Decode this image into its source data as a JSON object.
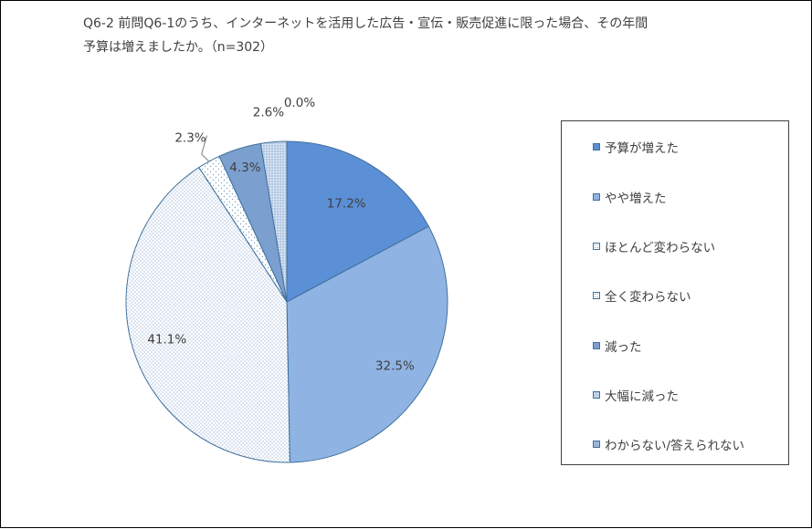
{
  "title_line1": "Q6-2 前問Q6-1のうち、インターネットを活用した広告・宣伝・販売促進に限った場合、その年間",
  "title_line2": "予算は増えましたか。（n=302）",
  "chart_data": {
    "type": "pie",
    "title": "Q6-2 前問Q6-1のうち、インターネットを活用した広告・宣伝・販売促進に限った場合、その年間予算は増えましたか。（n=302）",
    "categories": [
      "予算が増えた",
      "やや増えた",
      "ほとんど変わらない",
      "全く変わらない",
      "減った",
      "大幅に減った",
      "わからない/答えられない"
    ],
    "values": [
      17.2,
      32.5,
      41.1,
      2.3,
      4.3,
      2.6,
      0.0
    ],
    "labels": [
      "17.2%",
      "32.5%",
      "41.1%",
      "2.3%",
      "4.3%",
      "2.6%",
      "0.0%"
    ],
    "colors": [
      "#5b8fd6",
      "#8fb4e3",
      "#ffffff",
      "#ffffff",
      "#7b9fcf",
      "#b7cbe6",
      "#9db3d9"
    ],
    "patterns": [
      "solid",
      "solid",
      "dots-fine",
      "dots-sparse",
      "solid",
      "dots-dense",
      "solid"
    ],
    "legend_position": "right"
  }
}
